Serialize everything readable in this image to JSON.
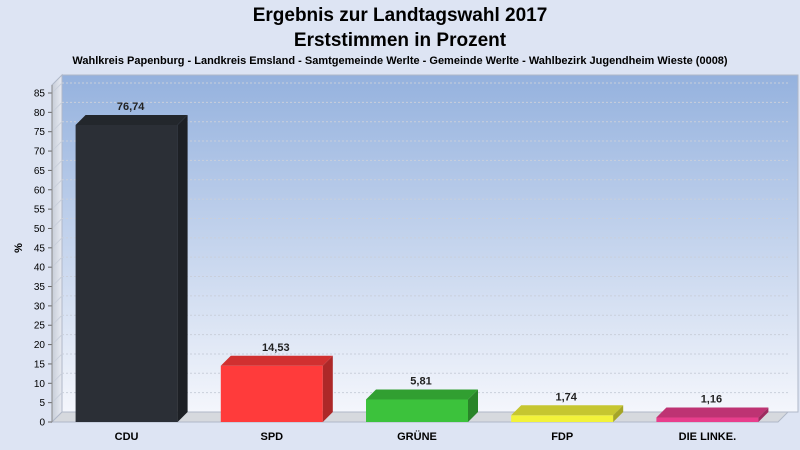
{
  "chart_data": {
    "type": "bar",
    "title": "Ergebnis zur Landtagswahl 2017",
    "subtitle": "Erststimmen in Prozent",
    "caption": "Wahlkreis Papenburg - Landkreis Emsland - Samtgemeinde Werlte - Gemeinde Werlte - Wahlbezirk Jugendheim Wieste (0008)",
    "ylabel": "%",
    "xlabel": "",
    "ylim": [
      0,
      85
    ],
    "ytick_step": 5,
    "grid": true,
    "legend": "none",
    "categories": [
      "CDU",
      "SPD",
      "GRÜNE",
      "FDP",
      "DIE LINKE."
    ],
    "values": [
      76.74,
      14.53,
      5.81,
      1.74,
      1.16
    ],
    "value_labels": [
      "76,74",
      "14,53",
      "5,81",
      "1,74",
      "1,16"
    ],
    "colors": [
      "#2b2f36",
      "#ff3b3b",
      "#3cc23c",
      "#f2f23a",
      "#e83e8c"
    ]
  }
}
